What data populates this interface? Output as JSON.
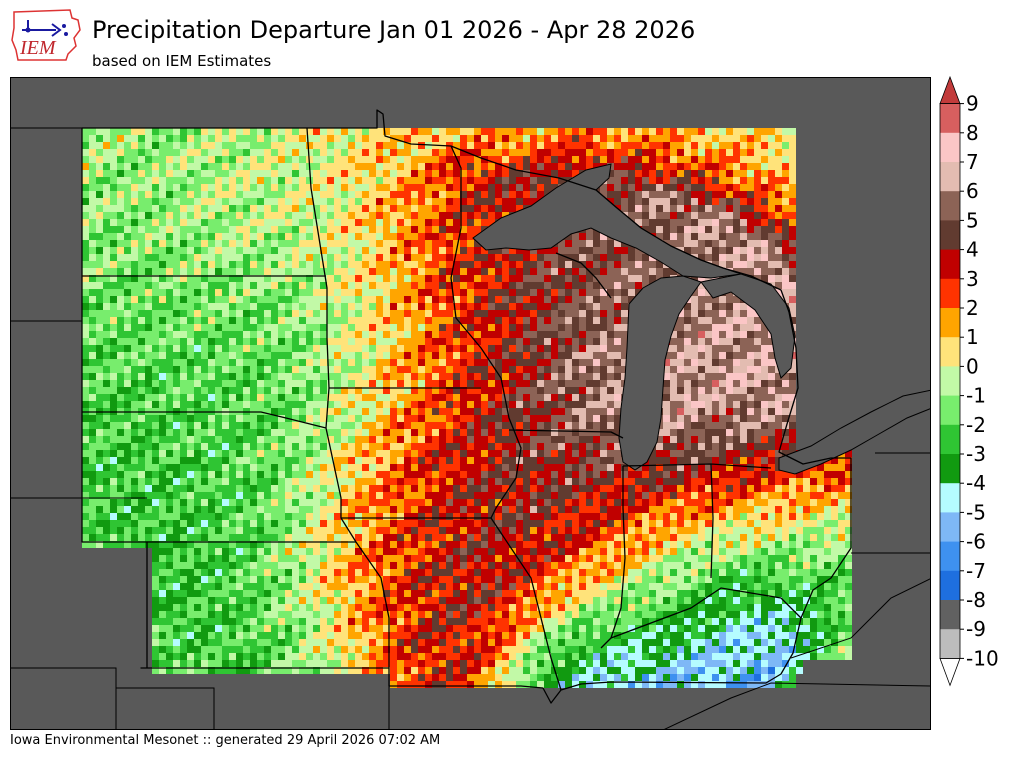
{
  "header": {
    "title": "Precipitation Departure Jan 01 2026 - Apr 28 2026",
    "subtitle": "based on IEM Estimates"
  },
  "logo": {
    "text": "IEM"
  },
  "footer": {
    "text": "Iowa Environmental Mesonet :: generated 29 April 2026 07:02 AM"
  },
  "legend": {
    "labels": [
      "9",
      "8",
      "7",
      "6",
      "5",
      "4",
      "3",
      "2",
      "1",
      "0",
      "-1",
      "-2",
      "-3",
      "-4",
      "-5",
      "-6",
      "-7",
      "-8",
      "-9",
      "-10"
    ],
    "colors": [
      "#d75f5f",
      "#fbc6c6",
      "#e3bcb1",
      "#8c6356",
      "#613b30",
      "#c00000",
      "#ff3300",
      "#ffa500",
      "#ffe37a",
      "#c2f9a7",
      "#78ed6d",
      "#2fc533",
      "#119a10",
      "#b5fcff",
      "#7eb8f6",
      "#3e91f0",
      "#1e6fdf",
      "#616161",
      "#bdbdbd"
    ],
    "over_color": "#c23b3b",
    "under_color": "#ffffff"
  },
  "map": {
    "background_color": "#595959",
    "lake_color": "#595959",
    "state_outline_color": "#000000"
  }
}
